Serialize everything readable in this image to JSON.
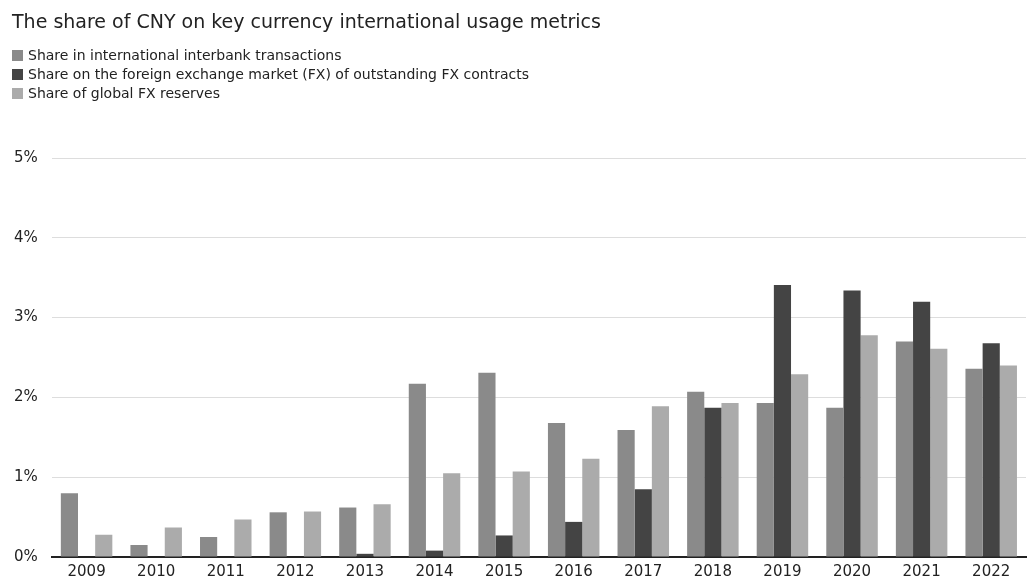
{
  "chart_data": {
    "type": "bar",
    "title": "The share of CNY on key currency international usage metrics",
    "categories": [
      "2009",
      "2010",
      "2011",
      "2012",
      "2013",
      "2014",
      "2015",
      "2016",
      "2017",
      "2018",
      "2019",
      "2020",
      "2021",
      "2022"
    ],
    "series": [
      {
        "name": "Share in international interbank transactions",
        "color": "#8a8a8a",
        "values": [
          0.8,
          0.15,
          0.25,
          0.56,
          0.62,
          2.17,
          2.31,
          1.68,
          1.59,
          2.07,
          1.93,
          1.87,
          2.7,
          2.36
        ]
      },
      {
        "name": "Share on the foreign exchange market (FX) of outstanding FX contracts",
        "color": "#444444",
        "values": [
          null,
          null,
          null,
          null,
          0.04,
          0.08,
          0.27,
          0.44,
          0.85,
          1.87,
          3.41,
          3.34,
          3.2,
          2.68
        ]
      },
      {
        "name": "Share of global FX reserves",
        "color": "#ababab",
        "values": [
          0.28,
          0.37,
          0.47,
          0.57,
          0.66,
          1.05,
          1.07,
          1.23,
          1.89,
          1.93,
          2.29,
          2.78,
          2.61,
          2.4
        ]
      }
    ],
    "ylim": [
      0,
      5
    ],
    "yticks": [
      {
        "value": 0,
        "label": "0%"
      },
      {
        "value": 1,
        "label": "1%"
      },
      {
        "value": 2,
        "label": "2%"
      },
      {
        "value": 3,
        "label": "3%"
      },
      {
        "value": 4,
        "label": "4%"
      },
      {
        "value": 5,
        "label": "5%"
      }
    ],
    "grid": "y",
    "legend": "top left"
  }
}
